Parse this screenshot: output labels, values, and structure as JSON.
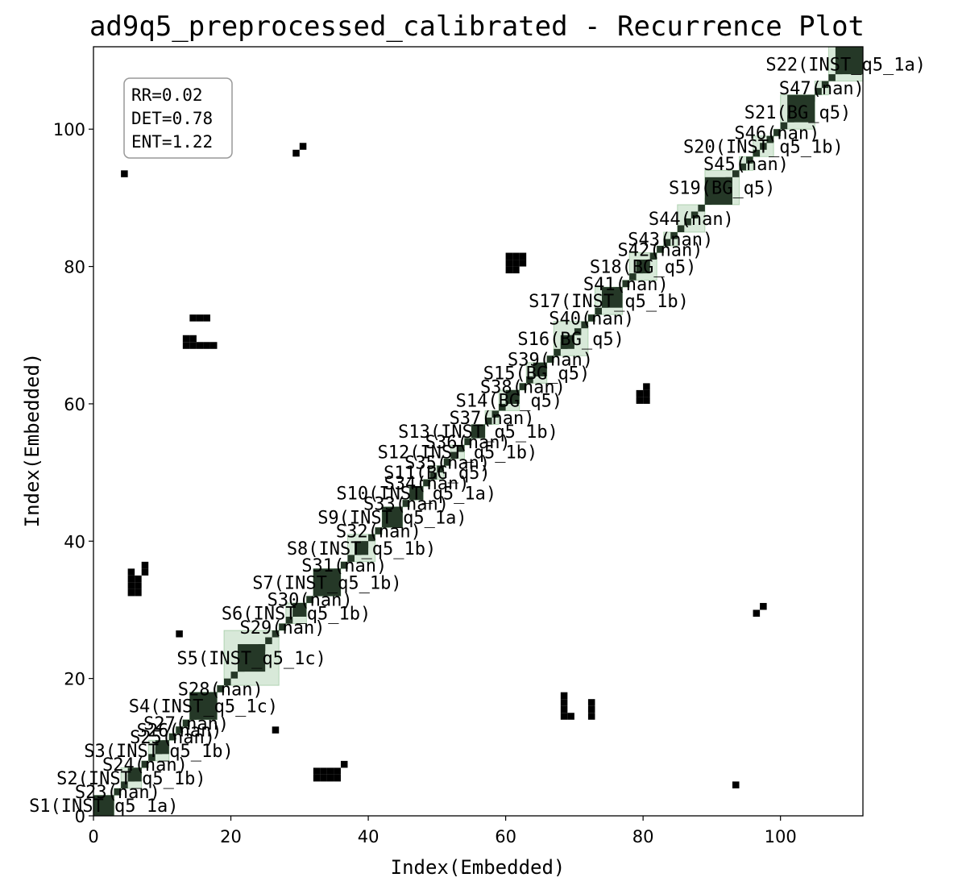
{
  "chart_data": {
    "type": "heatmap",
    "title": "ad9q5_preprocessed_calibrated - Recurrence Plot",
    "xlabel": "Index(Embedded)",
    "ylabel": "Index(Embedded)",
    "xlim": [
      0,
      112
    ],
    "ylim": [
      0,
      112
    ],
    "xticks": [
      0,
      20,
      40,
      60,
      80,
      100
    ],
    "yticks": [
      0,
      20,
      40,
      60,
      80,
      100
    ],
    "stats": [
      "RR=0.02",
      "DET=0.78",
      "ENT=1.22"
    ],
    "colors": {
      "point": "#000000",
      "segment_fill": "#4e9a50",
      "dense": "#253827"
    },
    "segments": [
      {
        "label": "S1(INST_q5_1a)",
        "start": 0,
        "end": 3
      },
      {
        "label": "S23(nan)",
        "start": 3,
        "end": 4
      },
      {
        "label": "S2(INST_q5_1b)",
        "start": 4,
        "end": 7
      },
      {
        "label": "S24(nan)",
        "start": 7,
        "end": 8
      },
      {
        "label": "S3(INST_q5_1b)",
        "start": 8,
        "end": 11
      },
      {
        "label": "S25(nan)",
        "start": 11,
        "end": 12
      },
      {
        "label": "S26(nan)",
        "start": 12,
        "end": 13
      },
      {
        "label": "S27(nan)",
        "start": 13,
        "end": 14
      },
      {
        "label": "S4(INST_q5_1c)",
        "start": 14,
        "end": 18
      },
      {
        "label": "S28(nan)",
        "start": 18,
        "end": 19
      },
      {
        "label": "S5(INST_q5_1c)",
        "start": 19,
        "end": 27
      },
      {
        "label": "S29(nan)",
        "start": 27,
        "end": 28
      },
      {
        "label": "S6(INST_q5_1b)",
        "start": 28,
        "end": 31
      },
      {
        "label": "S30(nan)",
        "start": 31,
        "end": 32
      },
      {
        "label": "S7(INST_q5_1b)",
        "start": 32,
        "end": 36
      },
      {
        "label": "S31(nan)",
        "start": 36,
        "end": 37
      },
      {
        "label": "S8(INST_q5_1b)",
        "start": 37,
        "end": 41
      },
      {
        "label": "S32(nan)",
        "start": 41,
        "end": 42
      },
      {
        "label": "S9(INST_q5_1a)",
        "start": 42,
        "end": 45
      },
      {
        "label": "S33(nan)",
        "start": 45,
        "end": 46
      },
      {
        "label": "S10(INST_q5_1a)",
        "start": 46,
        "end": 48
      },
      {
        "label": "S34(nan)",
        "start": 48,
        "end": 49
      },
      {
        "label": "S11(BG_q5)",
        "start": 49,
        "end": 51
      },
      {
        "label": "S35(nan)",
        "start": 51,
        "end": 52
      },
      {
        "label": "S12(INST_q5_1b)",
        "start": 52,
        "end": 54
      },
      {
        "label": "S36(nan)",
        "start": 54,
        "end": 55
      },
      {
        "label": "S13(INST_q5_1b)",
        "start": 55,
        "end": 57
      },
      {
        "label": "S37(nan)",
        "start": 57,
        "end": 59
      },
      {
        "label": "S14(BG_q5)",
        "start": 59,
        "end": 62
      },
      {
        "label": "S38(nan)",
        "start": 62,
        "end": 63
      },
      {
        "label": "S15(BG_q5)",
        "start": 63,
        "end": 66
      },
      {
        "label": "S39(nan)",
        "start": 66,
        "end": 67
      },
      {
        "label": "S16(BG_q5)",
        "start": 67,
        "end": 72
      },
      {
        "label": "S40(nan)",
        "start": 72,
        "end": 73
      },
      {
        "label": "S17(INST_q5_1b)",
        "start": 73,
        "end": 77
      },
      {
        "label": "S41(nan)",
        "start": 77,
        "end": 78
      },
      {
        "label": "S18(BG_q5)",
        "start": 78,
        "end": 82
      },
      {
        "label": "S42(nan)",
        "start": 82,
        "end": 83
      },
      {
        "label": "S43(nan)",
        "start": 83,
        "end": 85
      },
      {
        "label": "S44(nan)",
        "start": 85,
        "end": 89
      },
      {
        "label": "S19(BG_q5)",
        "start": 89,
        "end": 94
      },
      {
        "label": "S45(nan)",
        "start": 94,
        "end": 96
      },
      {
        "label": "S20(INST_q5_1b)",
        "start": 96,
        "end": 99
      },
      {
        "label": "S46(nan)",
        "start": 99,
        "end": 100
      },
      {
        "label": "S21(BG_q5)",
        "start": 100,
        "end": 105
      },
      {
        "label": "S47(nan)",
        "start": 105,
        "end": 107
      },
      {
        "label": "S22(INST_q5_1a)",
        "start": 107,
        "end": 112
      }
    ],
    "dense_blocks": [
      {
        "x": 0,
        "y": 0,
        "w": 3,
        "h": 3
      },
      {
        "x": 5,
        "y": 5,
        "w": 2,
        "h": 2
      },
      {
        "x": 9,
        "y": 9,
        "w": 2,
        "h": 2
      },
      {
        "x": 14,
        "y": 14,
        "w": 4,
        "h": 4
      },
      {
        "x": 21,
        "y": 21,
        "w": 4,
        "h": 4
      },
      {
        "x": 29,
        "y": 29,
        "w": 2,
        "h": 2
      },
      {
        "x": 32,
        "y": 32,
        "w": 4,
        "h": 4
      },
      {
        "x": 38,
        "y": 38,
        "w": 2,
        "h": 2
      },
      {
        "x": 42,
        "y": 42,
        "w": 3,
        "h": 3
      },
      {
        "x": 46,
        "y": 46,
        "w": 2,
        "h": 2
      },
      {
        "x": 55,
        "y": 55,
        "w": 2,
        "h": 2
      },
      {
        "x": 60,
        "y": 60,
        "w": 2,
        "h": 2
      },
      {
        "x": 64,
        "y": 64,
        "w": 2,
        "h": 2
      },
      {
        "x": 68,
        "y": 68,
        "w": 2,
        "h": 2
      },
      {
        "x": 74,
        "y": 74,
        "w": 3,
        "h": 3
      },
      {
        "x": 79,
        "y": 79,
        "w": 2,
        "h": 2
      },
      {
        "x": 89,
        "y": 89,
        "w": 4,
        "h": 4
      },
      {
        "x": 98,
        "y": 98,
        "w": 1,
        "h": 1
      },
      {
        "x": 101,
        "y": 101,
        "w": 4,
        "h": 4
      },
      {
        "x": 108,
        "y": 108,
        "w": 4,
        "h": 4
      }
    ],
    "points": [
      [
        4,
        93
      ],
      [
        29,
        96
      ],
      [
        30,
        97
      ],
      [
        14,
        72
      ],
      [
        15,
        72
      ],
      [
        16,
        72
      ],
      [
        13,
        68
      ],
      [
        14,
        68
      ],
      [
        15,
        68
      ],
      [
        16,
        68
      ],
      [
        17,
        68
      ],
      [
        13,
        69
      ],
      [
        14,
        69
      ],
      [
        60,
        79
      ],
      [
        61,
        79
      ],
      [
        60,
        80
      ],
      [
        61,
        80
      ],
      [
        62,
        80
      ],
      [
        60,
        81
      ],
      [
        61,
        81
      ],
      [
        62,
        81
      ],
      [
        79,
        60
      ],
      [
        80,
        60
      ],
      [
        79,
        61
      ],
      [
        80,
        61
      ],
      [
        80,
        62
      ],
      [
        5,
        32
      ],
      [
        6,
        32
      ],
      [
        5,
        33
      ],
      [
        6,
        33
      ],
      [
        5,
        34
      ],
      [
        6,
        34
      ],
      [
        5,
        35
      ],
      [
        7,
        35
      ],
      [
        7,
        36
      ],
      [
        12,
        26
      ],
      [
        26,
        12
      ],
      [
        96,
        29
      ],
      [
        97,
        30
      ],
      [
        93,
        4
      ],
      [
        68,
        14
      ],
      [
        69,
        14
      ],
      [
        68,
        15
      ],
      [
        68,
        16
      ],
      [
        68,
        17
      ],
      [
        72,
        14
      ],
      [
        72,
        15
      ],
      [
        72,
        16
      ],
      [
        32,
        5
      ],
      [
        33,
        5
      ],
      [
        34,
        5
      ],
      [
        35,
        5
      ],
      [
        32,
        6
      ],
      [
        33,
        6
      ],
      [
        34,
        6
      ],
      [
        35,
        6
      ],
      [
        36,
        7
      ]
    ]
  }
}
